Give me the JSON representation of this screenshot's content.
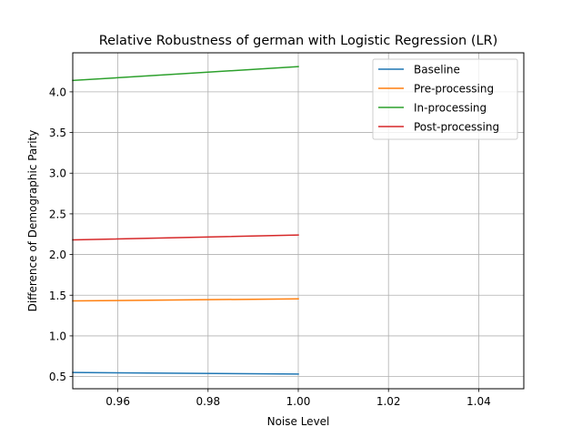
{
  "chart_data": {
    "type": "line",
    "title": "Relative Robustness of german with Logistic Regression (LR)",
    "xlabel": "Noise Level",
    "ylabel": "Difference of Demographic Parity",
    "xlim": [
      0.95,
      1.05
    ],
    "ylim": [
      0.35,
      4.48
    ],
    "xticks": [
      "0.96",
      "0.98",
      "1.00",
      "1.02",
      "1.04"
    ],
    "yticks": [
      "0.5",
      "1.0",
      "1.5",
      "2.0",
      "2.5",
      "3.0",
      "3.5",
      "4.0"
    ],
    "grid": true,
    "legend_position": "top-right",
    "x": [
      0.95,
      1.0
    ],
    "series": [
      {
        "name": "Baseline",
        "color": "#1f77b4",
        "values": [
          0.55,
          0.53
        ]
      },
      {
        "name": "Pre-processing",
        "color": "#ff7f0e",
        "values": [
          1.43,
          1.455
        ]
      },
      {
        "name": "In-processing",
        "color": "#2ca02c",
        "values": [
          4.14,
          4.31
        ]
      },
      {
        "name": "Post-processing",
        "color": "#d62728",
        "values": [
          2.18,
          2.24
        ]
      }
    ]
  }
}
